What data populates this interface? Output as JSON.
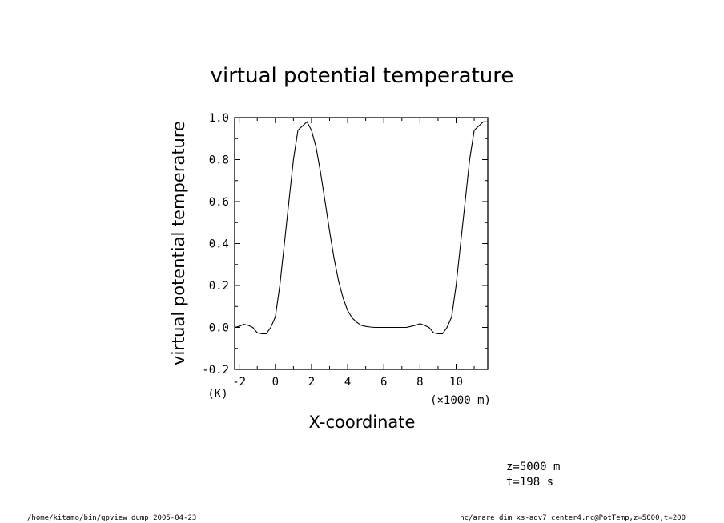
{
  "chart_data": {
    "type": "line",
    "title": "virtual potential temperature",
    "xlabel": "X-coordinate",
    "ylabel": "virtual potential temperature",
    "x_unit_label": "(×1000 m)",
    "y_unit_label": "(K)",
    "xlim": [
      -2.25,
      11.75
    ],
    "ylim": [
      -0.2,
      1.0
    ],
    "x_ticks": [
      -2,
      0,
      2,
      4,
      6,
      8,
      10
    ],
    "x_tick_labels": [
      "-2",
      "0",
      "2",
      "4",
      "6",
      "8",
      "10"
    ],
    "y_ticks": [
      -0.2,
      0.0,
      0.2,
      0.4,
      0.6,
      0.8,
      1.0
    ],
    "y_tick_labels": [
      "-0.2",
      "0.0",
      "0.2",
      "0.4",
      "0.6",
      "0.8",
      "1.0"
    ],
    "grid": false,
    "series": [
      {
        "x": [
          -2.25,
          -2.0,
          -1.75,
          -1.5,
          -1.25,
          -1.0,
          -0.75,
          -0.5,
          -0.25,
          0.0,
          0.25,
          0.5,
          0.75,
          1.0,
          1.25,
          1.5,
          1.75,
          2.0,
          2.25,
          2.5,
          2.75,
          3.0,
          3.25,
          3.5,
          3.75,
          4.0,
          4.25,
          4.5,
          4.75,
          5.0,
          5.25,
          5.5,
          5.75,
          6.0,
          6.25,
          6.5,
          6.75,
          7.0,
          7.25,
          7.5,
          7.75,
          8.0,
          8.25,
          8.5,
          8.75,
          9.0,
          9.25,
          9.5,
          9.75,
          10.0,
          10.25,
          10.5,
          10.75,
          11.0,
          11.25,
          11.5,
          11.75
        ],
        "y": [
          0.0,
          0.005,
          0.015,
          0.01,
          0.0,
          -0.025,
          -0.03,
          -0.03,
          0.0,
          0.05,
          0.2,
          0.4,
          0.6,
          0.8,
          0.94,
          0.96,
          0.98,
          0.94,
          0.86,
          0.74,
          0.6,
          0.46,
          0.33,
          0.22,
          0.14,
          0.08,
          0.045,
          0.025,
          0.01,
          0.005,
          0.002,
          0.0,
          0.0,
          0.0,
          0.0,
          0.0,
          0.0,
          0.0,
          0.0,
          0.005,
          0.01,
          0.018,
          0.01,
          0.0,
          -0.025,
          -0.03,
          -0.03,
          0.0,
          0.05,
          0.2,
          0.4,
          0.6,
          0.8,
          0.94,
          0.96,
          0.98,
          0.98
        ]
      }
    ]
  },
  "info": {
    "z_label": "z=5000 m",
    "t_label": "t=198 s"
  },
  "footer": {
    "left": "/home/kitamo/bin/gpview_dump  2005-04-23",
    "right": "nc/arare_dim_xs-adv7_center4.nc@PotTemp,z=5000,t=200"
  }
}
